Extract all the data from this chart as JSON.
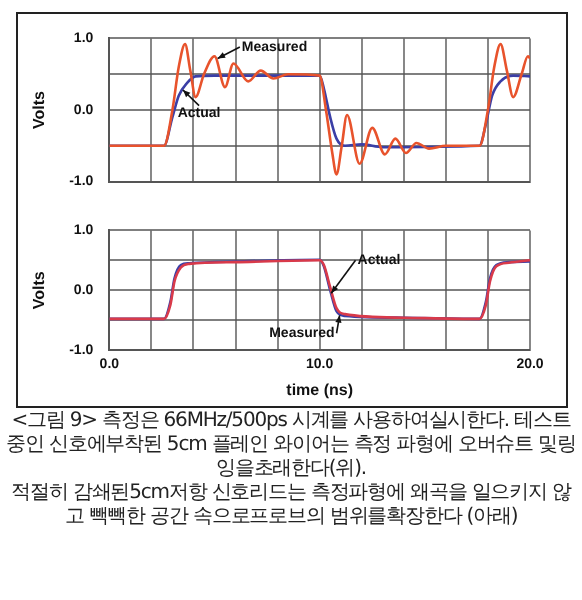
{
  "chart_data": [
    {
      "type": "line",
      "ylabel": "Volts",
      "xlim": [
        0,
        20
      ],
      "ylim": [
        -1,
        1
      ],
      "xticks": [
        {
          "value": 0,
          "label": null
        },
        {
          "value": 2,
          "label": null
        },
        {
          "value": 4,
          "label": null
        },
        {
          "value": 6,
          "label": null
        },
        {
          "value": 8,
          "label": null
        },
        {
          "value": 10,
          "label": null
        },
        {
          "value": 12,
          "label": null
        },
        {
          "value": 14,
          "label": null
        },
        {
          "value": 16,
          "label": null
        },
        {
          "value": 18,
          "label": null
        },
        {
          "value": 20,
          "label": null
        }
      ],
      "yticks": [
        {
          "value": -1,
          "label": "-1.0"
        },
        {
          "value": -0.5,
          "label": null
        },
        {
          "value": 0,
          "label": "0.0"
        },
        {
          "value": 0.5,
          "label": null
        },
        {
          "value": 1,
          "label": "1.0"
        }
      ],
      "grid": true,
      "legend": false,
      "tick_labels": "y",
      "series": [
        {
          "name": "Measured",
          "color": "#e8532c",
          "x": [
            0,
            2.6,
            3.0,
            3.3,
            3.6,
            3.85,
            4.1,
            4.5,
            5.0,
            5.5,
            5.9,
            6.6,
            7.2,
            7.8,
            8.5,
            10.0,
            10.3,
            10.6,
            10.8,
            11.05,
            11.3,
            11.9,
            12.5,
            13.1,
            13.6,
            14.1,
            14.6,
            15.2,
            16,
            17.6,
            18.0,
            18.3,
            18.6,
            18.9,
            19.2,
            19.6,
            19.9,
            20
          ],
          "values": [
            -0.5,
            -0.5,
            0.0,
            0.6,
            0.92,
            0.55,
            0.18,
            0.5,
            0.75,
            0.32,
            0.65,
            0.4,
            0.55,
            0.44,
            0.5,
            0.48,
            0.0,
            -0.6,
            -0.9,
            -0.5,
            -0.07,
            -0.75,
            -0.25,
            -0.62,
            -0.4,
            -0.6,
            -0.46,
            -0.54,
            -0.5,
            -0.5,
            0.0,
            0.6,
            0.92,
            0.55,
            0.18,
            0.5,
            0.75,
            0.72
          ]
        },
        {
          "name": "Actual",
          "color": "#3b3fa6",
          "x": [
            0,
            2.6,
            3.0,
            3.3,
            3.7,
            4.1,
            5,
            10.0,
            10.2,
            10.5,
            10.8,
            11.2,
            12,
            13,
            17.6,
            17.9,
            18.2,
            18.6,
            19.2,
            20
          ],
          "values": [
            -0.5,
            -0.5,
            -0.1,
            0.2,
            0.38,
            0.47,
            0.48,
            0.48,
            0.3,
            -0.1,
            -0.4,
            -0.5,
            -0.48,
            -0.52,
            -0.5,
            -0.2,
            0.2,
            0.4,
            0.48,
            0.47
          ]
        }
      ]
    },
    {
      "type": "line",
      "ylabel": "Volts",
      "xlabel": "time (ns)",
      "xlim": [
        0,
        20
      ],
      "ylim": [
        -1,
        1
      ],
      "xticks": [
        {
          "value": 0,
          "label": "0.0"
        },
        {
          "value": 2,
          "label": null
        },
        {
          "value": 4,
          "label": null
        },
        {
          "value": 6,
          "label": null
        },
        {
          "value": 8,
          "label": null
        },
        {
          "value": 10,
          "label": "10.0"
        },
        {
          "value": 12,
          "label": null
        },
        {
          "value": 14,
          "label": null
        },
        {
          "value": 16,
          "label": null
        },
        {
          "value": 18,
          "label": null
        },
        {
          "value": 20,
          "label": "20.0"
        }
      ],
      "yticks": [
        {
          "value": -1,
          "label": "-1.0"
        },
        {
          "value": -0.5,
          "label": null
        },
        {
          "value": 0,
          "label": "0.0"
        },
        {
          "value": 0.5,
          "label": null
        },
        {
          "value": 1,
          "label": "1.0"
        }
      ],
      "grid": true,
      "legend": false,
      "annotations": [
        "<그림 9> 측정은 66MHz/500ps 시계를 사용하여실시한다. 테스트중인 신호에부착된 5cm 플레인 와이어는 측정 파형에 오버슈트 및링잉을초래한다(위).",
        "적절히 감쇄된5cm저항 신호리드는 측정파형에 왜곡을 일으키지 않고 빽빽한 공간 속으로프로브의 범위를확장한다 (아래)"
      ],
      "series": [
        {
          "name": "Measured",
          "color": "#d93a4a",
          "x": [
            0,
            2.6,
            2.9,
            3.1,
            3.4,
            3.8,
            6,
            10,
            10.2,
            10.5,
            10.8,
            11.2,
            14,
            17.6,
            17.9,
            18.1,
            18.4,
            19,
            20
          ],
          "values": [
            -0.48,
            -0.48,
            -0.25,
            0.15,
            0.38,
            0.44,
            0.47,
            0.5,
            0.42,
            0.05,
            -0.3,
            -0.4,
            -0.46,
            -0.48,
            -0.25,
            0.15,
            0.4,
            0.46,
            0.5
          ]
        },
        {
          "name": "Actual",
          "color": "#3b3fa6",
          "x": [
            0,
            2.6,
            2.9,
            3.1,
            3.4,
            3.8,
            6,
            10,
            10.2,
            10.5,
            10.8,
            11.2,
            14,
            17.6,
            17.9,
            18.1,
            18.4,
            19,
            20
          ],
          "values": [
            -0.48,
            -0.48,
            -0.2,
            0.2,
            0.42,
            0.45,
            0.48,
            0.51,
            0.4,
            0.0,
            -0.35,
            -0.43,
            -0.46,
            -0.48,
            -0.2,
            0.2,
            0.42,
            0.47,
            0.48
          ]
        }
      ]
    }
  ]
}
